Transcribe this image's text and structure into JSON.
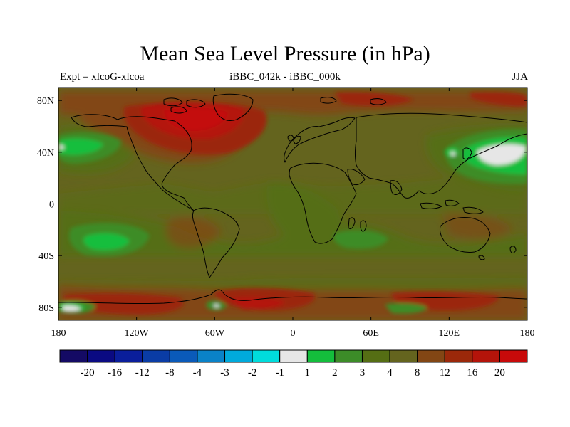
{
  "title": "Mean Sea Level Pressure (in hPa)",
  "subtitle_left": "Expt = xlcoG-xlcoa",
  "subtitle_center": "iBBC_042k - iBBC_000k",
  "subtitle_right": "JJA",
  "map": {
    "projection": "cylindrical-equidistant",
    "lon_range": [
      -180,
      180
    ],
    "lat_range": [
      -90,
      90
    ],
    "x_ticks": [
      "180",
      "120W",
      "60W",
      "0",
      "60E",
      "120E",
      "180"
    ],
    "y_ticks": [
      "80N",
      "40N",
      "0",
      "40S",
      "80S"
    ],
    "field": "filled contours of MSLP difference"
  },
  "colorbar": {
    "labels": [
      "-20",
      "-16",
      "-12",
      "-8",
      "-4",
      "-3",
      "-2",
      "-1",
      "1",
      "2",
      "3",
      "4",
      "8",
      "12",
      "16",
      "20"
    ],
    "colors": [
      "#140a64",
      "#0a0a82",
      "#0a1e9b",
      "#0a3ca5",
      "#0a5ab9",
      "#0a82c8",
      "#00aadc",
      "#00dcdc",
      "#e6e6e6",
      "#14be3c",
      "#3c8c28",
      "#556e14",
      "#64641e",
      "#824614",
      "#9b280a",
      "#b4140a",
      "#c80a0a"
    ]
  }
}
